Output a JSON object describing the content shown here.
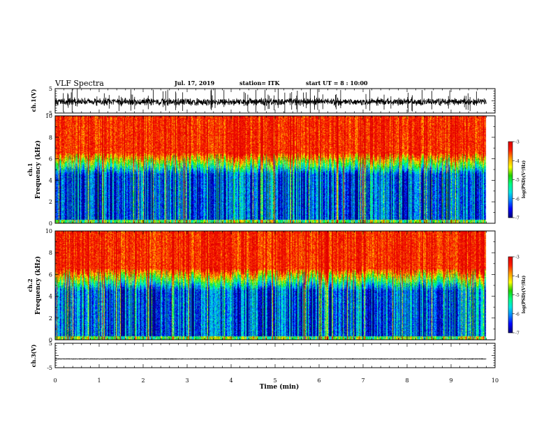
{
  "header": {
    "title": "VLF Spectra",
    "date": "Jul. 17, 2019",
    "station": "station= ITK",
    "start": "start UT =  8 : 10:00"
  },
  "chart_data": [
    {
      "id": "ch1-waveform",
      "type": "line",
      "ylabel": "ch.1(V)",
      "ylim": [
        -5,
        5
      ],
      "yticks": [
        5,
        -5
      ],
      "xlim": [
        0,
        10
      ],
      "data_end_min": 9.8,
      "baseline": -0.4,
      "noise_amplitude": 1.2,
      "spike_ymax": 5,
      "spike_ymin": -5
    },
    {
      "id": "ch1-spectrogram",
      "type": "heatmap",
      "ylabel": "ch.1\nFrequency (kHz)",
      "ylim": [
        0,
        10
      ],
      "yticks": [
        0,
        2,
        4,
        6,
        8,
        10
      ],
      "xlim": [
        0,
        10
      ],
      "data_end_min": 9.8,
      "colorbar": {
        "label": "log(PSD)(V²/Hz)",
        "ticks": [
          -3,
          -4,
          -5,
          -6,
          -7
        ],
        "range": [
          -7,
          -3
        ]
      },
      "profile": {
        "low_band_khz": [
          0,
          4.5
        ],
        "low_level": -6.4,
        "mid_band_khz": [
          4.5,
          6.5
        ],
        "high_level": -3.4
      }
    },
    {
      "id": "ch2-spectrogram",
      "type": "heatmap",
      "ylabel": "ch.2\nFrequency (kHz)",
      "ylim": [
        0,
        10
      ],
      "yticks": [
        0,
        2,
        4,
        6,
        8,
        10
      ],
      "xlim": [
        0,
        10
      ],
      "data_end_min": 9.8,
      "colorbar": {
        "label": "log(PSD)(V²/Hz)",
        "ticks": [
          -3,
          -4,
          -5,
          -6,
          -7
        ],
        "range": [
          -7,
          -3
        ]
      },
      "profile": {
        "low_band_khz": [
          0,
          4.5
        ],
        "low_level": -6.4,
        "mid_band_khz": [
          4.5,
          6.5
        ],
        "high_level": -3.4
      }
    },
    {
      "id": "ch3-waveform",
      "type": "line",
      "ylabel": "ch.3(V)",
      "ylim": [
        -5,
        5
      ],
      "yticks": [
        5,
        -5
      ],
      "xlim": [
        0,
        10
      ],
      "data_end_min": 9.8,
      "baseline": -1.4,
      "noise_amplitude": 0.1
    }
  ],
  "xaxis": {
    "label": "Time (min)",
    "ticks": [
      0,
      1,
      2,
      3,
      4,
      5,
      6,
      7,
      8,
      9,
      10
    ]
  },
  "colors": {
    "colormap": [
      "#000080",
      "#0000ff",
      "#0080ff",
      "#00e5e5",
      "#00ff80",
      "#20d000",
      "#ffff00",
      "#ffa000",
      "#ff2000",
      "#e00000"
    ]
  }
}
